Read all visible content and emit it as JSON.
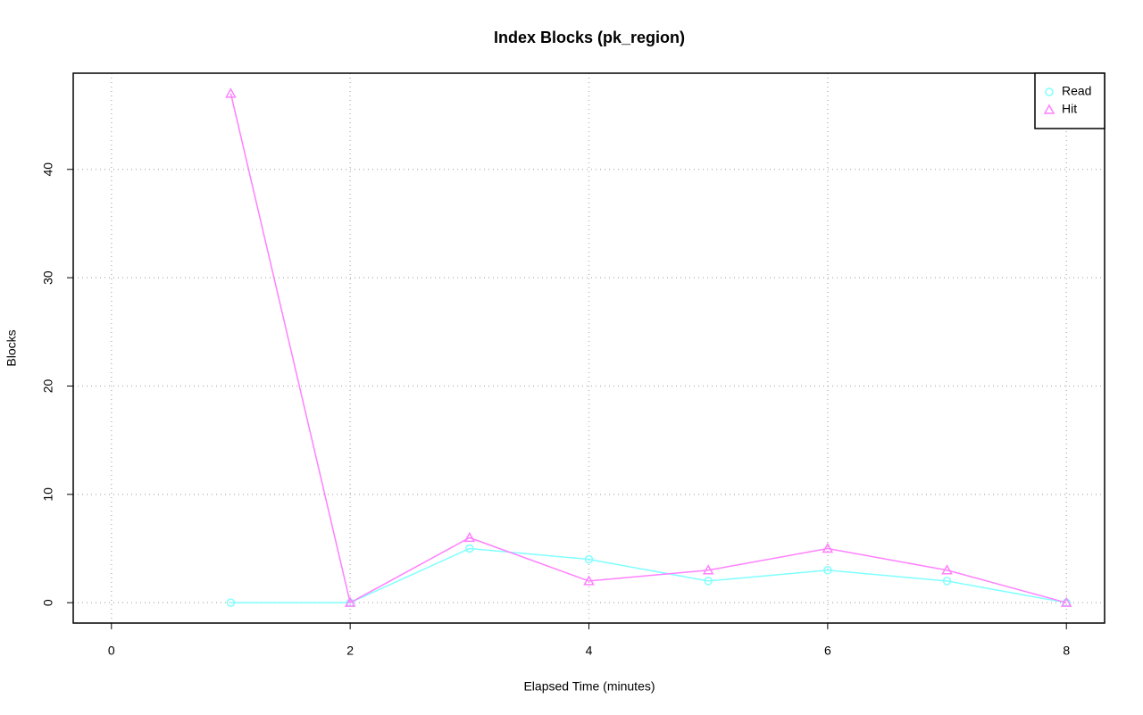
{
  "chart_data": {
    "type": "line",
    "title": "Index Blocks (pk_region)",
    "xlabel": "Elapsed Time (minutes)",
    "ylabel": "Blocks",
    "x": [
      1,
      2,
      3,
      4,
      5,
      6,
      7,
      8
    ],
    "series": [
      {
        "name": "Read",
        "color": "#80ffff",
        "marker": "circle",
        "values": [
          0,
          0,
          5,
          4,
          2,
          3,
          2,
          0
        ]
      },
      {
        "name": "Hit",
        "color": "#ff80ff",
        "marker": "triangle",
        "values": [
          47,
          0,
          6,
          2,
          3,
          5,
          3,
          0
        ]
      }
    ],
    "xlim": [
      -0.32,
      8.32
    ],
    "xticks": [
      0,
      2,
      4,
      6,
      8
    ],
    "ylim": [
      -1.88,
      48.88
    ],
    "yticks": [
      0,
      10,
      20,
      30,
      40
    ],
    "grid": true,
    "legend": "top-right"
  }
}
